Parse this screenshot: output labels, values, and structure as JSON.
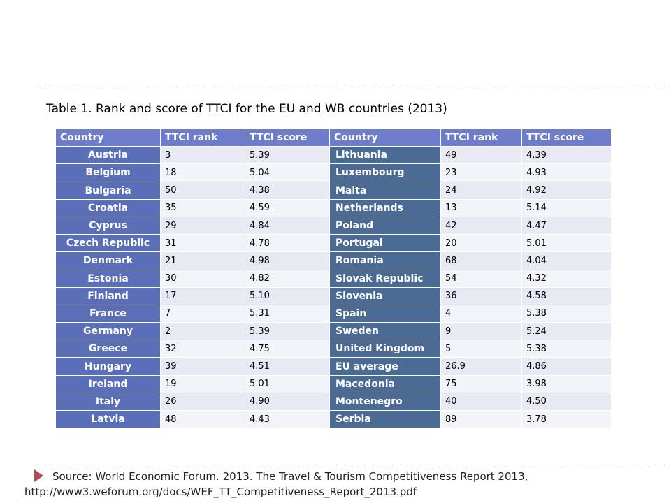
{
  "caption": "Table 1. Rank and score of TTCI for the EU and WB countries (2013)",
  "headers": [
    "Country",
    "TTCI rank",
    "TTCI score",
    "Country",
    "TTCI rank",
    "TTCI score"
  ],
  "rows": [
    {
      "left": {
        "country": "Austria",
        "rank": "3",
        "score": "5.39"
      },
      "right": {
        "country": "Lithuania",
        "rank": "49",
        "score": "4.39"
      }
    },
    {
      "left": {
        "country": "Belgium",
        "rank": "18",
        "score": "5.04"
      },
      "right": {
        "country": "Luxembourg",
        "rank": "23",
        "score": "4.93"
      }
    },
    {
      "left": {
        "country": "Bulgaria",
        "rank": "50",
        "score": "4.38"
      },
      "right": {
        "country": "Malta",
        "rank": "24",
        "score": "4.92"
      }
    },
    {
      "left": {
        "country": "Croatia",
        "rank": "35",
        "score": "4.59"
      },
      "right": {
        "country": "Netherlands",
        "rank": "13",
        "score": "5.14"
      }
    },
    {
      "left": {
        "country": "Cyprus",
        "rank": "29",
        "score": "4.84"
      },
      "right": {
        "country": "Poland",
        "rank": "42",
        "score": "4.47"
      }
    },
    {
      "left": {
        "country": "Czech Republic",
        "rank": "31",
        "score": "4.78"
      },
      "right": {
        "country": "Portugal",
        "rank": "20",
        "score": "5.01"
      }
    },
    {
      "left": {
        "country": "Denmark",
        "rank": "21",
        "score": "4.98"
      },
      "right": {
        "country": "Romania",
        "rank": "68",
        "score": "4.04"
      }
    },
    {
      "left": {
        "country": "Estonia",
        "rank": "30",
        "score": "4.82"
      },
      "right": {
        "country": "Slovak Republic",
        "rank": "54",
        "score": "4.32"
      }
    },
    {
      "left": {
        "country": "Finland",
        "rank": "17",
        "score": "5.10"
      },
      "right": {
        "country": "Slovenia",
        "rank": "36",
        "score": "4.58"
      }
    },
    {
      "left": {
        "country": "France",
        "rank": "7",
        "score": "5.31"
      },
      "right": {
        "country": "Spain",
        "rank": "4",
        "score": "5.38"
      }
    },
    {
      "left": {
        "country": "Germany",
        "rank": "2",
        "score": "5.39"
      },
      "right": {
        "country": "Sweden",
        "rank": "9",
        "score": "5.24"
      }
    },
    {
      "left": {
        "country": "Greece",
        "rank": "32",
        "score": "4.75"
      },
      "right": {
        "country": "United Kingdom",
        "rank": "5",
        "score": "5.38"
      }
    },
    {
      "left": {
        "country": "Hungary",
        "rank": "39",
        "score": "4.51"
      },
      "right": {
        "country": "EU average",
        "rank": "26.9",
        "score": "4.86"
      }
    },
    {
      "left": {
        "country": "Ireland",
        "rank": "19",
        "score": "5.01"
      },
      "right": {
        "country": "Macedonia",
        "rank": "75",
        "score": "3.98"
      }
    },
    {
      "left": {
        "country": "Italy",
        "rank": "26",
        "score": "4.90"
      },
      "right": {
        "country": "Montenegro",
        "rank": "40",
        "score": "4.50"
      }
    },
    {
      "left": {
        "country": "Latvia",
        "rank": "48",
        "score": "4.43"
      },
      "right": {
        "country": "Serbia",
        "rank": "89",
        "score": "3.78"
      }
    }
  ],
  "source": {
    "text": "Source: World Economic Forum. 2013. The Travel & Tourism Competitiveness Report 2013,",
    "url": "http://www3.weforum.org/docs/WEF_TT_Competitiveness_Report_2013.pdf"
  },
  "colors": {
    "header_bg": "#6d7dcb",
    "left_country_bg": "#5b6fb8",
    "right_country_bg": "#4b6b95",
    "row_odd_bg": "#e7e9f3",
    "row_even_bg": "#f3f4f9",
    "bullet": "#b4485b"
  },
  "icons": {
    "bullet": "triangle-bullet-icon"
  }
}
